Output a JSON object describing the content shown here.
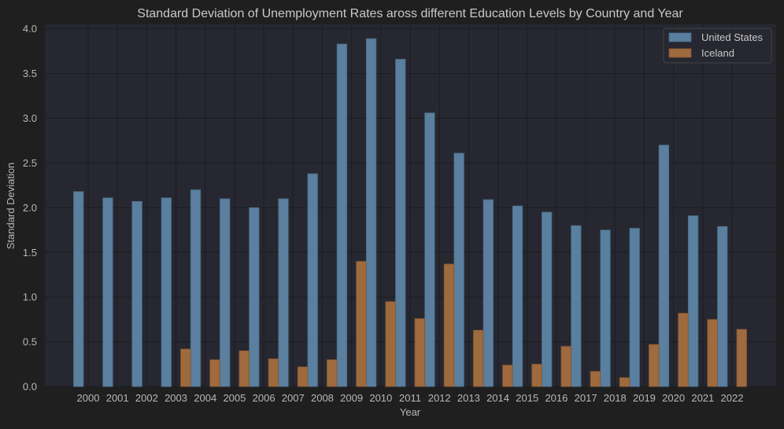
{
  "chart_data": {
    "type": "bar",
    "title": "Standard Deviation of Unemployment Rates aross different Education Levels by Country and Year",
    "xlabel": "Year",
    "ylabel": "Standard Deviation",
    "ylim": [
      0,
      4.05
    ],
    "yticks": [
      0.0,
      0.5,
      1.0,
      1.5,
      2.0,
      2.5,
      3.0,
      3.5,
      4.0
    ],
    "ytick_labels": [
      "0.0",
      "0.5",
      "1.0",
      "1.5",
      "2.0",
      "2.5",
      "3.0",
      "3.5",
      "4.0"
    ],
    "grid": true,
    "legend_position": "top-right",
    "categories": [
      "2000",
      "2001",
      "2002",
      "2003",
      "2004",
      "2005",
      "2006",
      "2007",
      "2008",
      "2009",
      "2010",
      "2011",
      "2012",
      "2013",
      "2014",
      "2015",
      "2016",
      "2017",
      "2018",
      "2019",
      "2020",
      "2021",
      "2022"
    ],
    "series": [
      {
        "name": "United States",
        "color": "#5b7f9e",
        "values": [
          2.18,
          2.11,
          2.07,
          2.11,
          2.2,
          2.1,
          2.0,
          2.1,
          2.38,
          3.83,
          3.89,
          3.66,
          3.06,
          2.61,
          2.09,
          2.02,
          1.95,
          1.8,
          1.75,
          1.77,
          2.7,
          1.91,
          1.79
        ]
      },
      {
        "name": "Iceland",
        "color": "#9e6a3e",
        "values": [
          null,
          null,
          null,
          0.42,
          0.3,
          0.4,
          0.31,
          0.22,
          0.3,
          1.4,
          0.95,
          0.76,
          1.37,
          0.63,
          0.24,
          0.25,
          0.45,
          0.17,
          0.1,
          0.47,
          0.82,
          0.75,
          0.64
        ]
      }
    ]
  }
}
